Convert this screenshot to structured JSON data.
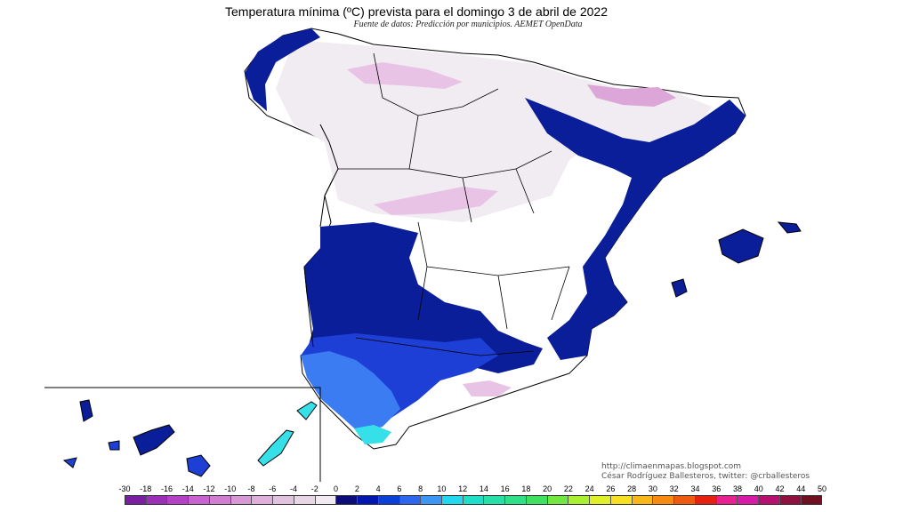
{
  "title": "Temperatura mínima (ºC) prevista para el domingo 3 de abril de 2022",
  "subtitle": "Fuente de datos: Predicción por municipios. AEMET OpenData",
  "credits": {
    "blog": "http://climaenmapas.blogspot.com",
    "author": "César Rodríguez Ballesteros, twitter: @crballesteros"
  },
  "legend": {
    "labels": [
      "-30",
      "-18",
      "-16",
      "-14",
      "-12",
      "-10",
      "-8",
      "-6",
      "-4",
      "-2",
      "0",
      "2",
      "4",
      "6",
      "8",
      "10",
      "12",
      "14",
      "16",
      "18",
      "20",
      "22",
      "24",
      "26",
      "28",
      "30",
      "32",
      "34",
      "36",
      "38",
      "40",
      "42",
      "44",
      "50"
    ],
    "colors": [
      "#7a1fa2",
      "#9b30b8",
      "#b542c6",
      "#c862cf",
      "#d07fd0",
      "#d898d6",
      "#deafda",
      "#e2c3df",
      "#e8d6e6",
      "#f2eaf1",
      "#0c0c7a",
      "#0016b0",
      "#0a3fd8",
      "#2e66f0",
      "#3c96f5",
      "#22d8f0",
      "#1ee0c8",
      "#26e0a8",
      "#2ee088",
      "#40e060",
      "#70e840",
      "#a8f030",
      "#e0f028",
      "#f8e020",
      "#f8b818",
      "#f88a10",
      "#f05a10",
      "#e82010",
      "#e82090",
      "#d81aa8",
      "#b81070",
      "#901040",
      "#701020"
    ]
  },
  "map_colors": {
    "cold_snow": "#e9c3e6",
    "near_zero": "#f1ecf1",
    "cool_mild": "#ffffff",
    "dark_blue": "#0a1e9a",
    "mid_blue": "#1e3fd6",
    "light_blue": "#3c7cf2",
    "cyan": "#35e0e8"
  }
}
